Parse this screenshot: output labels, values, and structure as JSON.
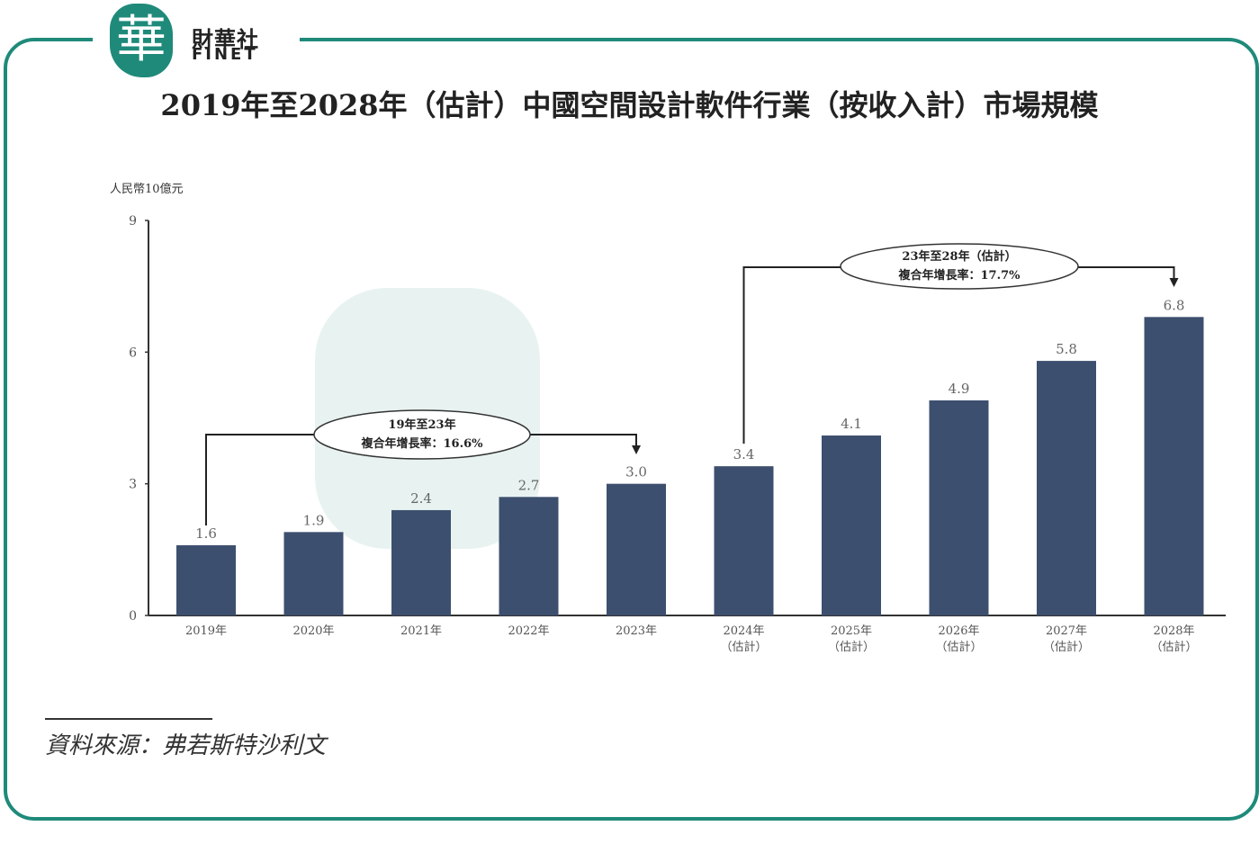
{
  "brand": {
    "logo_char": "華",
    "name_cn": "財華社",
    "name_en": "FINET"
  },
  "colors": {
    "frame": "#1f8a7a",
    "bar": "#3d4f6e"
  },
  "source": "資料來源：弗若斯特沙利文",
  "chart_data": {
    "type": "bar",
    "title": "2019年至2028年（估計）中國空間設計軟件行業（按收入計）市場規模",
    "ylabel": "人民幣10億元",
    "xlabel": "",
    "ylim": [
      0,
      9
    ],
    "yticks": [
      "0",
      "3",
      "6",
      "9"
    ],
    "categories": [
      "2019年",
      "2020年",
      "2021年",
      "2022年",
      "2023年",
      "2024年",
      "2025年",
      "2026年",
      "2027年",
      "2028年"
    ],
    "category_notes": [
      "",
      "",
      "",
      "",
      "",
      "（估計）",
      "（估計）",
      "（估計）",
      "（估計）",
      "（估計）"
    ],
    "values": [
      1.6,
      1.9,
      2.4,
      2.7,
      3.0,
      3.4,
      4.1,
      4.9,
      5.8,
      6.8
    ],
    "value_labels": [
      "1.6",
      "1.9",
      "2.4",
      "2.7",
      "3.0",
      "3.4",
      "4.1",
      "4.9",
      "5.8",
      "6.8"
    ],
    "annotations": [
      {
        "from": "2019年",
        "to": "2023年",
        "line1": "19年至23年",
        "line2": "複合年增長率：16.6%"
      },
      {
        "from": "2024年",
        "to": "2028年",
        "line1": "23年至28年（估計）",
        "line2": "複合年增長率：17.7%"
      }
    ]
  }
}
